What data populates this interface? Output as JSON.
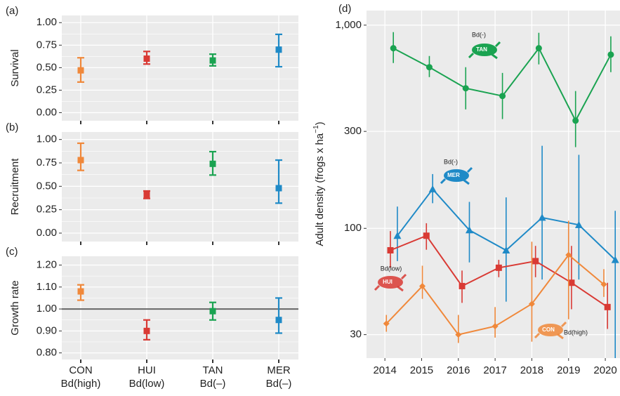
{
  "chart_data": [
    {
      "type": "errorbar",
      "panel": "(a)",
      "ylabel": "Survival",
      "values": [
        0.47,
        0.6,
        0.58,
        0.7
      ],
      "lower": [
        0.34,
        0.54,
        0.52,
        0.51
      ],
      "upper": [
        0.61,
        0.68,
        0.65,
        0.87
      ],
      "colors": [
        "#f0883a",
        "#d93a34",
        "#1aa351",
        "#1f8ac7"
      ],
      "marker": "square",
      "ylim": [
        -0.09,
        1.08
      ],
      "yticks": [
        {
          "value": 0,
          "label": "0.00"
        },
        0.25,
        {
          "value": 0.5,
          "label": "0.50"
        },
        0.75,
        {
          "value": 1,
          "label": "1.00"
        }
      ],
      "grid": true
    },
    {
      "type": "errorbar",
      "panel": "(b)",
      "ylabel": "Recruitment",
      "values": [
        0.78,
        0.41,
        0.74,
        0.48
      ],
      "lower": [
        0.67,
        0.37,
        0.62,
        0.32
      ],
      "upper": [
        0.96,
        0.45,
        0.87,
        0.78
      ],
      "colors": [
        "#f0883a",
        "#d93a34",
        "#1aa351",
        "#1f8ac7"
      ],
      "marker": "square",
      "ylim": [
        -0.09,
        1.08
      ],
      "yticks": [
        {
          "value": 0,
          "label": "0.00"
        },
        0.25,
        {
          "value": 0.5,
          "label": "0.50"
        },
        0.75,
        {
          "value": 1,
          "label": "1.00"
        }
      ],
      "grid": true
    },
    {
      "type": "errorbar",
      "panel": "(c)",
      "ylabel": "Growth rate",
      "categories": [
        "CON",
        "HUI",
        "TAN",
        "MER"
      ],
      "subcategories": [
        "Bd(high)",
        "Bd(low)",
        "Bd(–)",
        "Bd(–)"
      ],
      "values": [
        1.08,
        0.9,
        0.99,
        0.95
      ],
      "lower": [
        1.04,
        0.86,
        0.95,
        0.89
      ],
      "upper": [
        1.11,
        0.95,
        1.03,
        1.05
      ],
      "colors": [
        "#f0883a",
        "#d93a34",
        "#1aa351",
        "#1f8ac7"
      ],
      "marker": "square",
      "hline": 1,
      "ylim": [
        0.77,
        1.24
      ],
      "yticks": [
        {
          "value": 0.8,
          "label": "0.80"
        },
        {
          "value": 0.9,
          "label": "0.90"
        },
        {
          "value": 1,
          "label": "1.00"
        },
        {
          "value": 1.1,
          "label": "1.10"
        },
        {
          "value": 1.2,
          "label": "1.20"
        }
      ],
      "grid": true
    },
    {
      "type": "line",
      "panel": "(d)",
      "ylabel": [
        "Adult density (frogs x ha",
        "−1",
        ")"
      ],
      "log_y": true,
      "grid": true,
      "ylim": [
        23,
        1180
      ],
      "yticks": [
        {
          "value": 1000,
          "label": "1,000"
        },
        300,
        100,
        30
      ],
      "xlim": [
        2013.5,
        2020.4
      ],
      "xticks": [
        2014,
        2015,
        2016,
        2017,
        2018,
        2019,
        2020
      ],
      "series": [
        {
          "color": "#1aa351",
          "marker": "circle",
          "x": [
            2014.23,
            2015.21,
            2016.2,
            2017.2,
            2018.19,
            2019.19,
            2020.15
          ],
          "values": [
            770,
            621,
            489,
            448,
            770,
            339,
            716
          ],
          "lower": [
            651,
            555,
            385,
            345,
            641,
            251,
            587
          ],
          "upper": [
            924,
            705,
            621,
            582,
            917,
            474,
            881
          ]
        },
        {
          "color": "#1f8ac7",
          "marker": "triangle",
          "x": [
            2014.34,
            2015.3,
            2016.3,
            2017.3,
            2018.28,
            2019.28,
            2020.27
          ],
          "values": [
            92,
            156,
            98,
            78,
            113,
            104,
            70
          ],
          "lower": [
            69,
            133,
            68,
            43.6,
            56,
            56,
            23
          ],
          "upper": [
            128,
            185,
            135,
            142,
            255,
            230,
            122
          ]
        },
        {
          "color": "#d93a34",
          "marker": "square",
          "x": [
            2014.15,
            2015.13,
            2016.1,
            2017.1,
            2018.1,
            2019.08,
            2020.06
          ],
          "values": [
            78,
            92,
            52,
            64,
            69,
            54,
            41
          ],
          "lower": [
            64,
            78.5,
            43,
            57.5,
            57.5,
            40,
            32
          ],
          "upper": [
            97,
            106,
            62,
            70,
            82,
            82,
            54
          ]
        },
        {
          "color": "#f0883a",
          "marker": "diamond",
          "x": [
            2014.04,
            2015.02,
            2016.0,
            2017.0,
            2018.0,
            2019.0,
            2019.96
          ],
          "values": [
            34,
            52,
            30,
            33,
            42.5,
            74,
            53
          ],
          "lower": [
            31,
            45,
            27.3,
            29,
            27.7,
            35.7,
            46
          ],
          "upper": [
            37.5,
            65.5,
            37.5,
            41,
            86,
            109,
            63
          ]
        }
      ],
      "annotations": [
        {
          "label": "Bd(-)",
          "badge": "TAN"
        },
        {
          "label": "Bd(-)",
          "badge": "MER"
        },
        {
          "label": "Bd(low)",
          "badge": "HUI"
        },
        {
          "label": "Bd(high)",
          "badge": "CON"
        }
      ]
    }
  ]
}
